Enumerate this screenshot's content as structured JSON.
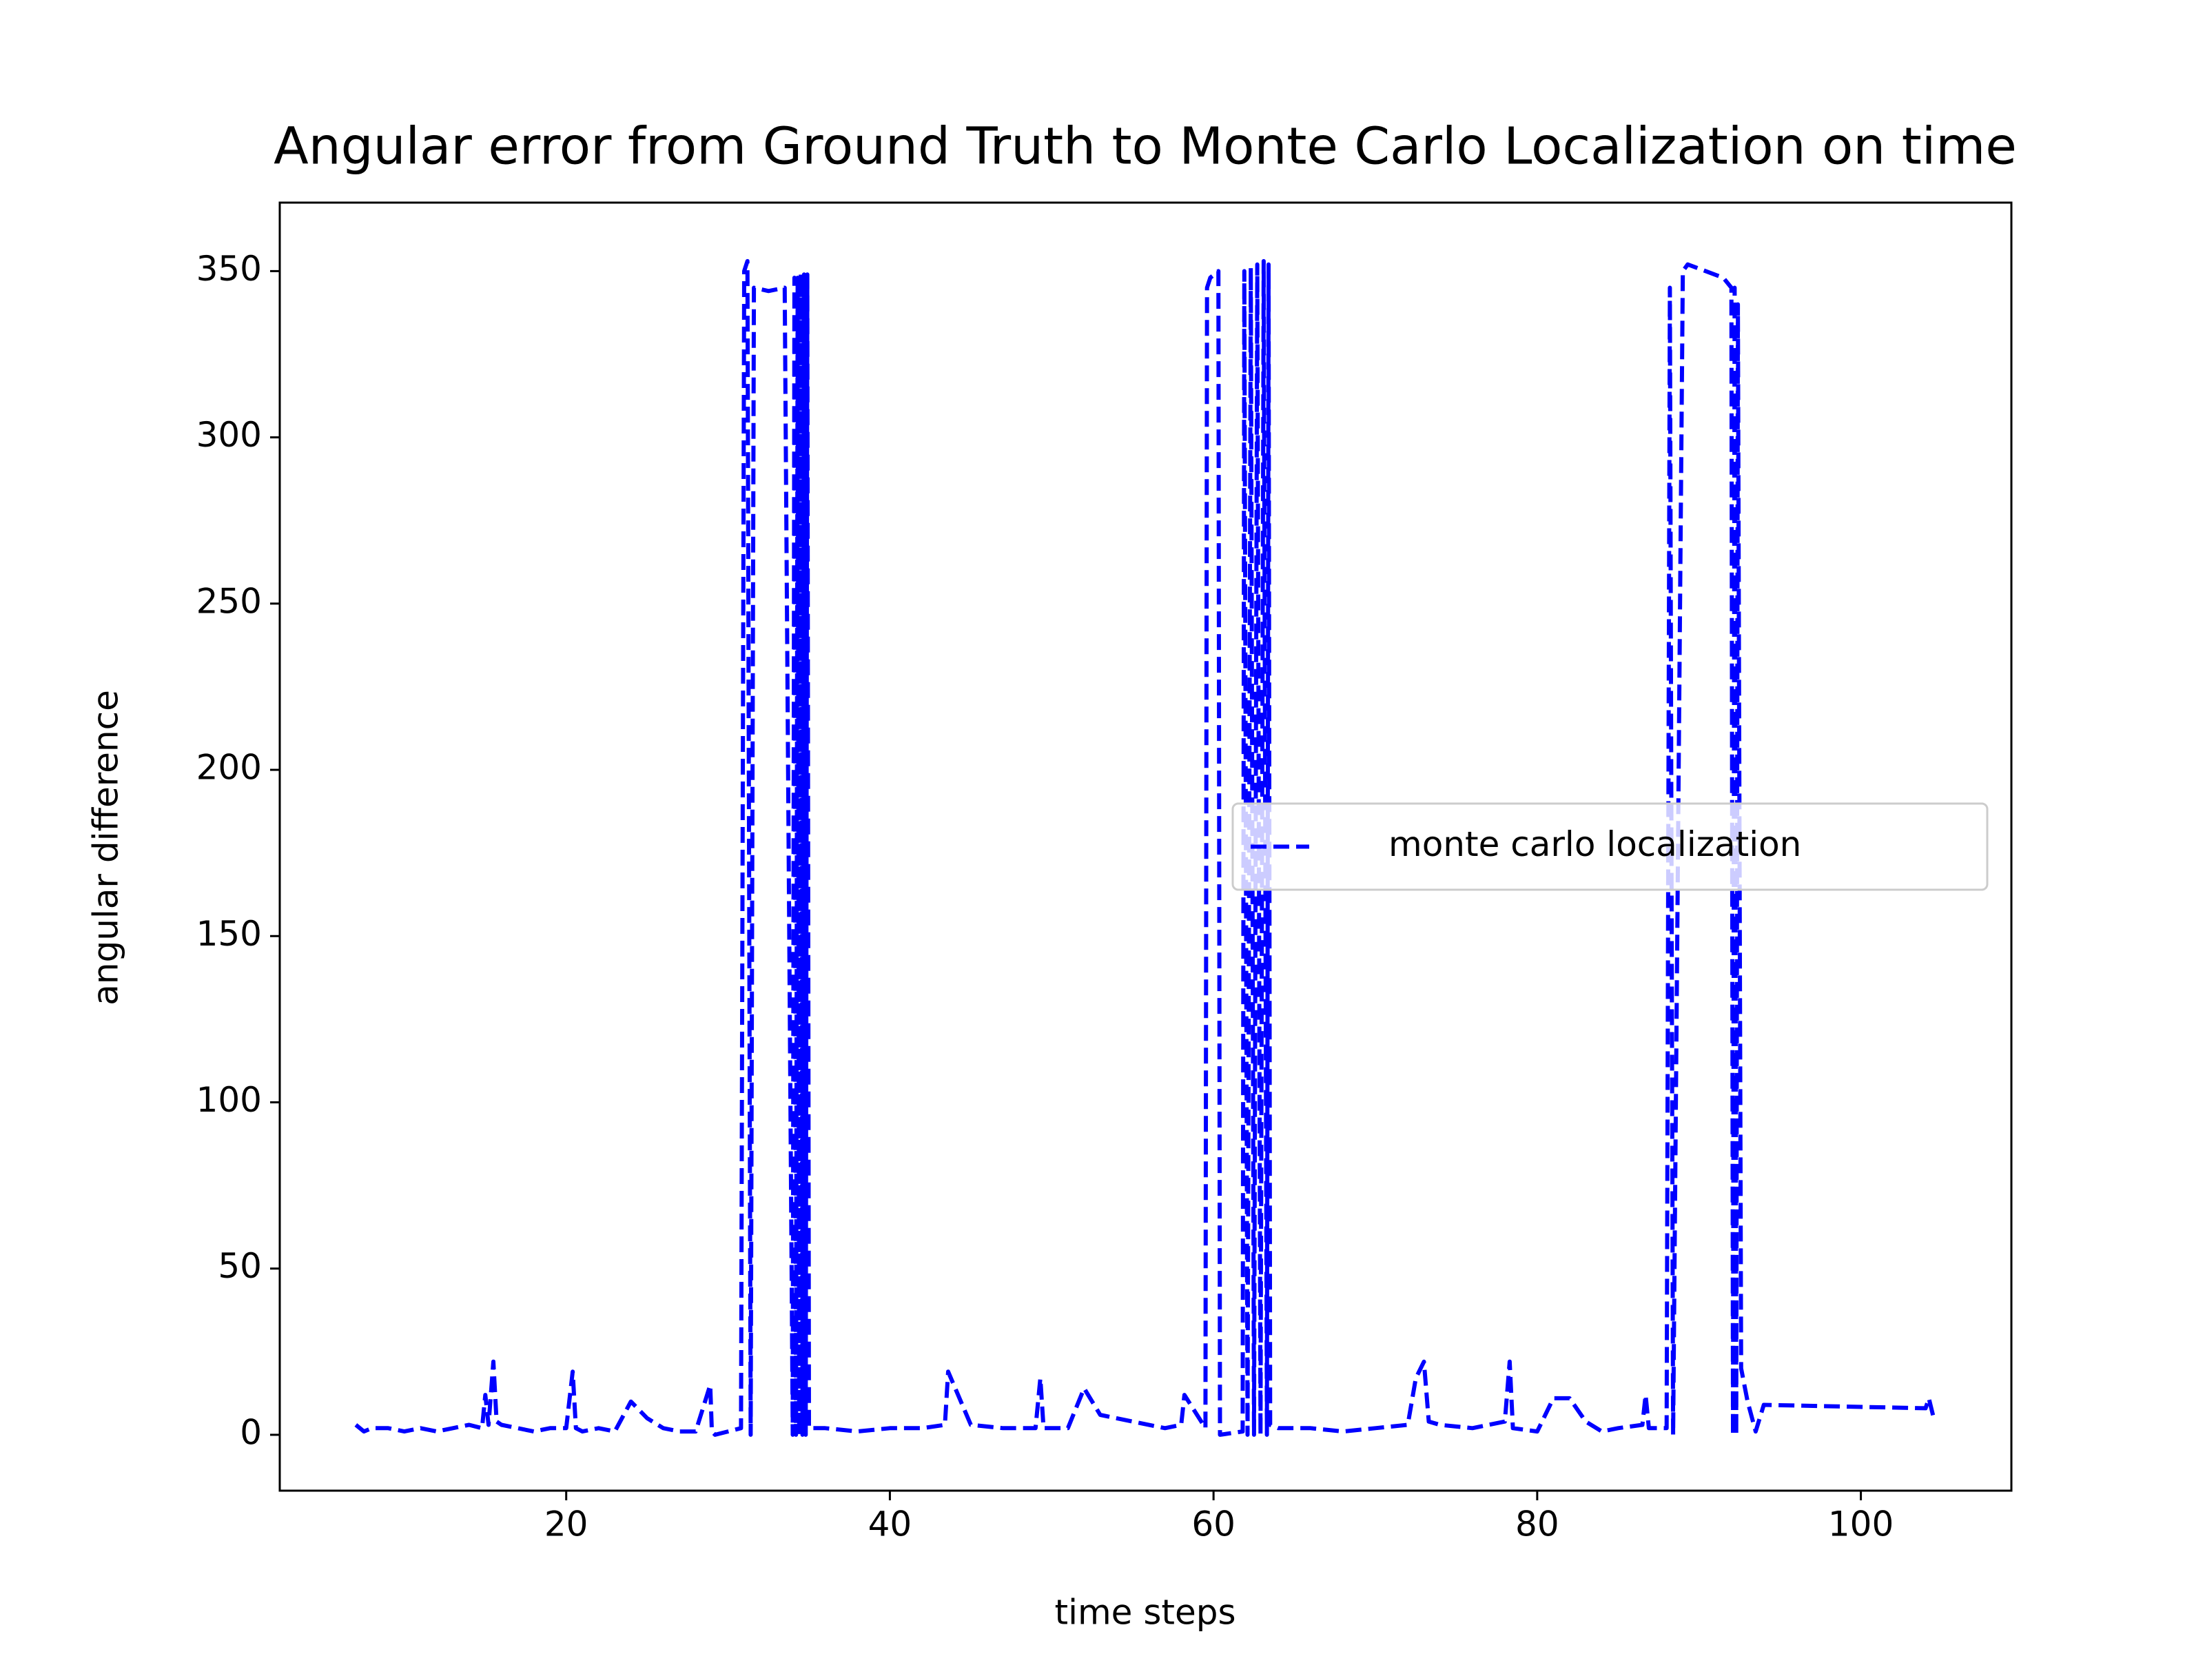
{
  "chart_data": {
    "type": "line",
    "title": "Angular error from Ground Truth to Monte Carlo Localization on time",
    "xlabel": "time steps",
    "ylabel": "angular difference",
    "xlim": [
      2.3,
      109.3
    ],
    "ylim": [
      -16.8,
      370.6
    ],
    "xticks": [
      20,
      40,
      60,
      80,
      100
    ],
    "yticks": [
      0,
      50,
      100,
      150,
      200,
      250,
      300,
      350
    ],
    "grid": false,
    "legend": "center right",
    "series": [
      {
        "name": "monte carlo localization",
        "color": "#0000ff",
        "x": [
          7,
          7.5,
          8,
          9,
          10,
          11,
          12,
          13,
          14,
          14.8,
          15,
          15.2,
          15.5,
          15.7,
          16,
          17,
          18,
          19,
          20,
          20.4,
          20.6,
          21,
          22,
          23,
          24,
          25,
          26,
          27,
          28,
          28.9,
          29,
          29.2,
          30,
          30.8,
          31,
          31.2,
          31.4,
          31.6,
          32.5,
          33.5,
          34,
          34.1,
          34.2,
          34.3,
          34.4,
          34.5,
          34.6,
          34.7,
          34.8,
          34.9,
          35,
          36,
          38,
          40,
          42,
          43.4,
          43.6,
          45,
          47,
          49,
          49.3,
          49.5,
          51,
          52,
          53,
          55,
          57,
          58,
          58.2,
          59.5,
          59.6,
          59.8,
          60.3,
          60.4,
          61.8,
          61.9,
          62.1,
          62.3,
          62.5,
          62.7,
          62.9,
          63.1,
          63.3,
          63.4,
          63.5,
          64,
          66,
          68,
          70,
          72,
          72.5,
          73,
          73.3,
          74,
          76,
          78,
          78.3,
          78.5,
          80,
          81,
          82,
          83,
          84,
          85,
          86.5,
          86.7,
          86.9,
          88,
          88.2,
          88.4,
          89,
          89.3,
          91.5,
          92,
          92.1,
          92.2,
          92.3,
          92.4,
          92.6,
          93,
          93.5,
          94,
          104,
          104.2,
          104.5
        ],
        "values": [
          3,
          1,
          2,
          2,
          1,
          2,
          1,
          2,
          3,
          2,
          12,
          3,
          22,
          4,
          3,
          2,
          1,
          2,
          2,
          19,
          2,
          1,
          2,
          1,
          10,
          5,
          2,
          1,
          1,
          15,
          1,
          0,
          1,
          2,
          350,
          353,
          0,
          345,
          344,
          345,
          0,
          348,
          0,
          348,
          0,
          349,
          0,
          349,
          0,
          349,
          2,
          2,
          1,
          2,
          2,
          3,
          19,
          3,
          2,
          2,
          17,
          2,
          2,
          14,
          6,
          4,
          2,
          3,
          12,
          2,
          345,
          348,
          350,
          0,
          1,
          350,
          0,
          351,
          0,
          352,
          0,
          353,
          0,
          352,
          3,
          2,
          2,
          1,
          2,
          3,
          17,
          22,
          4,
          3,
          2,
          4,
          22,
          2,
          1,
          11,
          11,
          4,
          1,
          2,
          3,
          12,
          2,
          2,
          345,
          0,
          350,
          352,
          348,
          345,
          0,
          345,
          0,
          340,
          20,
          10,
          1,
          9,
          8,
          11,
          5
        ]
      }
    ]
  }
}
